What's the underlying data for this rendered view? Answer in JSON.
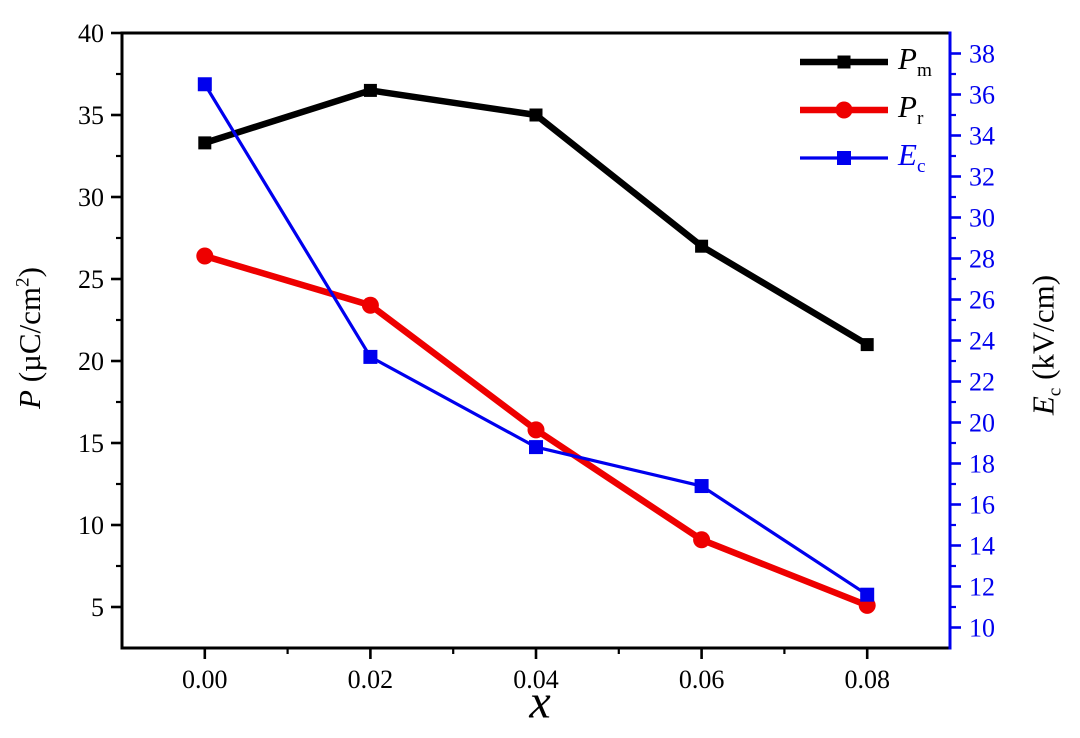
{
  "chart_data": {
    "type": "line",
    "title": "",
    "xlabel": "x",
    "x": [
      0.0,
      0.02,
      0.04,
      0.06,
      0.08
    ],
    "x_tick_labels": [
      "0.00",
      "0.02",
      "0.04",
      "0.06",
      "0.08"
    ],
    "xlim": [
      -0.01,
      0.09
    ],
    "x_minor_step": 0.01,
    "grid": "off",
    "legend_position": "top-right-inside",
    "axes": {
      "left": {
        "title_main": "P",
        "title_pre": " (µC/cm",
        "title_sup": "2",
        "title_post": ")",
        "ticks": [
          5,
          10,
          15,
          20,
          25,
          30,
          35,
          40
        ],
        "lim": [
          2.5,
          40
        ],
        "minor_step": 2.5,
        "color": "#000000"
      },
      "right": {
        "title_main": "E",
        "title_sub": "c",
        "title_rest": " (kV/cm)",
        "ticks": [
          10,
          12,
          14,
          16,
          18,
          20,
          22,
          24,
          26,
          28,
          30,
          32,
          34,
          36,
          38
        ],
        "lim": [
          9,
          39
        ],
        "minor_step": 1,
        "color": "#0000ee"
      }
    },
    "series": [
      {
        "name": "pm",
        "label_main": "P",
        "label_sub": "m",
        "label_color": "#000000",
        "axis": "left",
        "color": "#000000",
        "marker": "square",
        "marker_size": 13,
        "line_width": 6.5,
        "values": [
          33.3,
          36.5,
          35.0,
          27.0,
          21.0
        ]
      },
      {
        "name": "pr",
        "label_main": "P",
        "label_sub": "r",
        "label_color": "#000000",
        "axis": "left",
        "color": "#ee0000",
        "marker": "circle",
        "marker_size": 17,
        "line_width": 6.5,
        "values": [
          26.4,
          23.4,
          15.8,
          9.1,
          5.1
        ]
      },
      {
        "name": "ec",
        "label_main": "E",
        "label_sub": "c",
        "label_color": "#0000ee",
        "axis": "right",
        "color": "#0000ee",
        "marker": "square",
        "marker_size": 14,
        "line_width": 3.2,
        "values": [
          36.5,
          23.2,
          18.8,
          16.9,
          11.6
        ]
      }
    ]
  }
}
